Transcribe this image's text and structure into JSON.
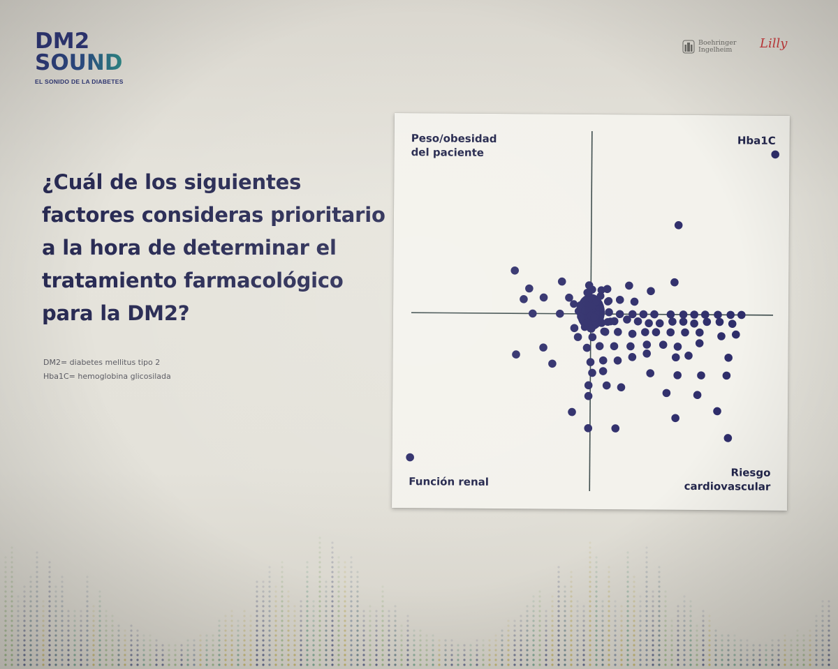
{
  "brand": {
    "line1": "DM2",
    "line2": "SOUND",
    "tagline": "EL SONIDO DE LA DIABETES"
  },
  "sponsors": {
    "boehringer_line1": "Boehringer",
    "boehringer_line2": "Ingelheim",
    "lilly": "Lilly"
  },
  "question": "¿Cuál de los siguientes factores consideras prioritario a la hora de determinar el tratamiento farmacológico para la DM2?",
  "notes": {
    "note1": "DM2= diabetes mellitus tipo 2",
    "note2": "Hba1C= hemoglobina glicosilada"
  },
  "chart_data": {
    "type": "scatter",
    "quadrant_labels": {
      "top_left_line1": "Peso/obesidad",
      "top_left_line2": "del paciente",
      "top_right": "Hba1C",
      "bottom_left": "Función renal",
      "bottom_right_line1": "Riesgo",
      "bottom_right_line2": "cardiovascular"
    },
    "axes": {
      "xlim": [
        -10,
        10
      ],
      "ylim": [
        -10,
        10
      ],
      "grid": false
    },
    "point_color": "#2e2d6a",
    "points": [
      [
        10.1,
        9.0
      ],
      [
        4.8,
        5.0
      ],
      [
        -4.2,
        2.4
      ],
      [
        -3.4,
        1.4
      ],
      [
        -1.6,
        1.8
      ],
      [
        -0.1,
        1.6
      ],
      [
        0.9,
        1.4
      ],
      [
        2.1,
        1.6
      ],
      [
        4.6,
        1.8
      ],
      [
        3.3,
        1.3
      ],
      [
        -3.7,
        0.8
      ],
      [
        -2.6,
        0.9
      ],
      [
        -1.2,
        0.9
      ],
      [
        0.3,
        0.7
      ],
      [
        1.6,
        0.8
      ],
      [
        2.4,
        0.7
      ],
      [
        -3.2,
        0.0
      ],
      [
        -1.7,
        0.0
      ],
      [
        -0.3,
        0.2
      ],
      [
        0.2,
        -0.2
      ],
      [
        1.0,
        0.1
      ],
      [
        1.6,
        0.0
      ],
      [
        2.3,
        0.0
      ],
      [
        2.9,
        0.0
      ],
      [
        3.5,
        0.0
      ],
      [
        4.4,
        0.0
      ],
      [
        5.1,
        0.0
      ],
      [
        5.7,
        0.0
      ],
      [
        6.3,
        0.0
      ],
      [
        7.0,
        0.0
      ],
      [
        7.7,
        0.0
      ],
      [
        8.3,
        0.0
      ],
      [
        -0.9,
        -0.8
      ],
      [
        -0.2,
        -0.5
      ],
      [
        0.6,
        -0.5
      ],
      [
        1.3,
        -0.4
      ],
      [
        2.0,
        -0.3
      ],
      [
        2.6,
        -0.4
      ],
      [
        3.2,
        -0.5
      ],
      [
        3.8,
        -0.5
      ],
      [
        4.5,
        -0.4
      ],
      [
        5.1,
        -0.4
      ],
      [
        5.7,
        -0.5
      ],
      [
        6.4,
        -0.4
      ],
      [
        7.1,
        -0.4
      ],
      [
        7.8,
        -0.5
      ],
      [
        -0.7,
        -1.3
      ],
      [
        0.1,
        -1.3
      ],
      [
        0.8,
        -1.0
      ],
      [
        1.5,
        -1.0
      ],
      [
        2.3,
        -1.1
      ],
      [
        3.0,
        -1.0
      ],
      [
        3.6,
        -1.0
      ],
      [
        4.4,
        -1.0
      ],
      [
        5.2,
        -1.0
      ],
      [
        6.0,
        -1.0
      ],
      [
        7.2,
        -1.2
      ],
      [
        8.0,
        -1.1
      ],
      [
        -4.1,
        -2.3
      ],
      [
        -2.6,
        -1.9
      ],
      [
        -0.2,
        -1.9
      ],
      [
        0.5,
        -1.8
      ],
      [
        1.3,
        -1.8
      ],
      [
        2.2,
        -1.8
      ],
      [
        3.1,
        -1.7
      ],
      [
        4.0,
        -1.7
      ],
      [
        4.8,
        -1.8
      ],
      [
        6.0,
        -1.6
      ],
      [
        -2.1,
        -2.8
      ],
      [
        0.0,
        -2.7
      ],
      [
        0.7,
        -2.6
      ],
      [
        1.5,
        -2.6
      ],
      [
        2.3,
        -2.4
      ],
      [
        3.1,
        -2.2
      ],
      [
        4.7,
        -2.4
      ],
      [
        5.4,
        -2.3
      ],
      [
        7.6,
        -2.4
      ],
      [
        0.1,
        -3.3
      ],
      [
        0.7,
        -3.2
      ],
      [
        3.3,
        -3.3
      ],
      [
        4.8,
        -3.4
      ],
      [
        6.1,
        -3.4
      ],
      [
        7.5,
        -3.4
      ],
      [
        -0.1,
        -4.0
      ],
      [
        0.9,
        -4.0
      ],
      [
        1.7,
        -4.1
      ],
      [
        4.2,
        -4.4
      ],
      [
        5.9,
        -4.5
      ],
      [
        -0.1,
        -4.6
      ],
      [
        -1.0,
        -5.5
      ],
      [
        4.7,
        -5.8
      ],
      [
        7.0,
        -5.4
      ],
      [
        -0.1,
        -6.4
      ],
      [
        1.4,
        -6.4
      ],
      [
        7.6,
        -6.9
      ],
      [
        -9.9,
        -8.1
      ]
    ],
    "cluster_center": [
      0.0,
      0.1
    ]
  }
}
